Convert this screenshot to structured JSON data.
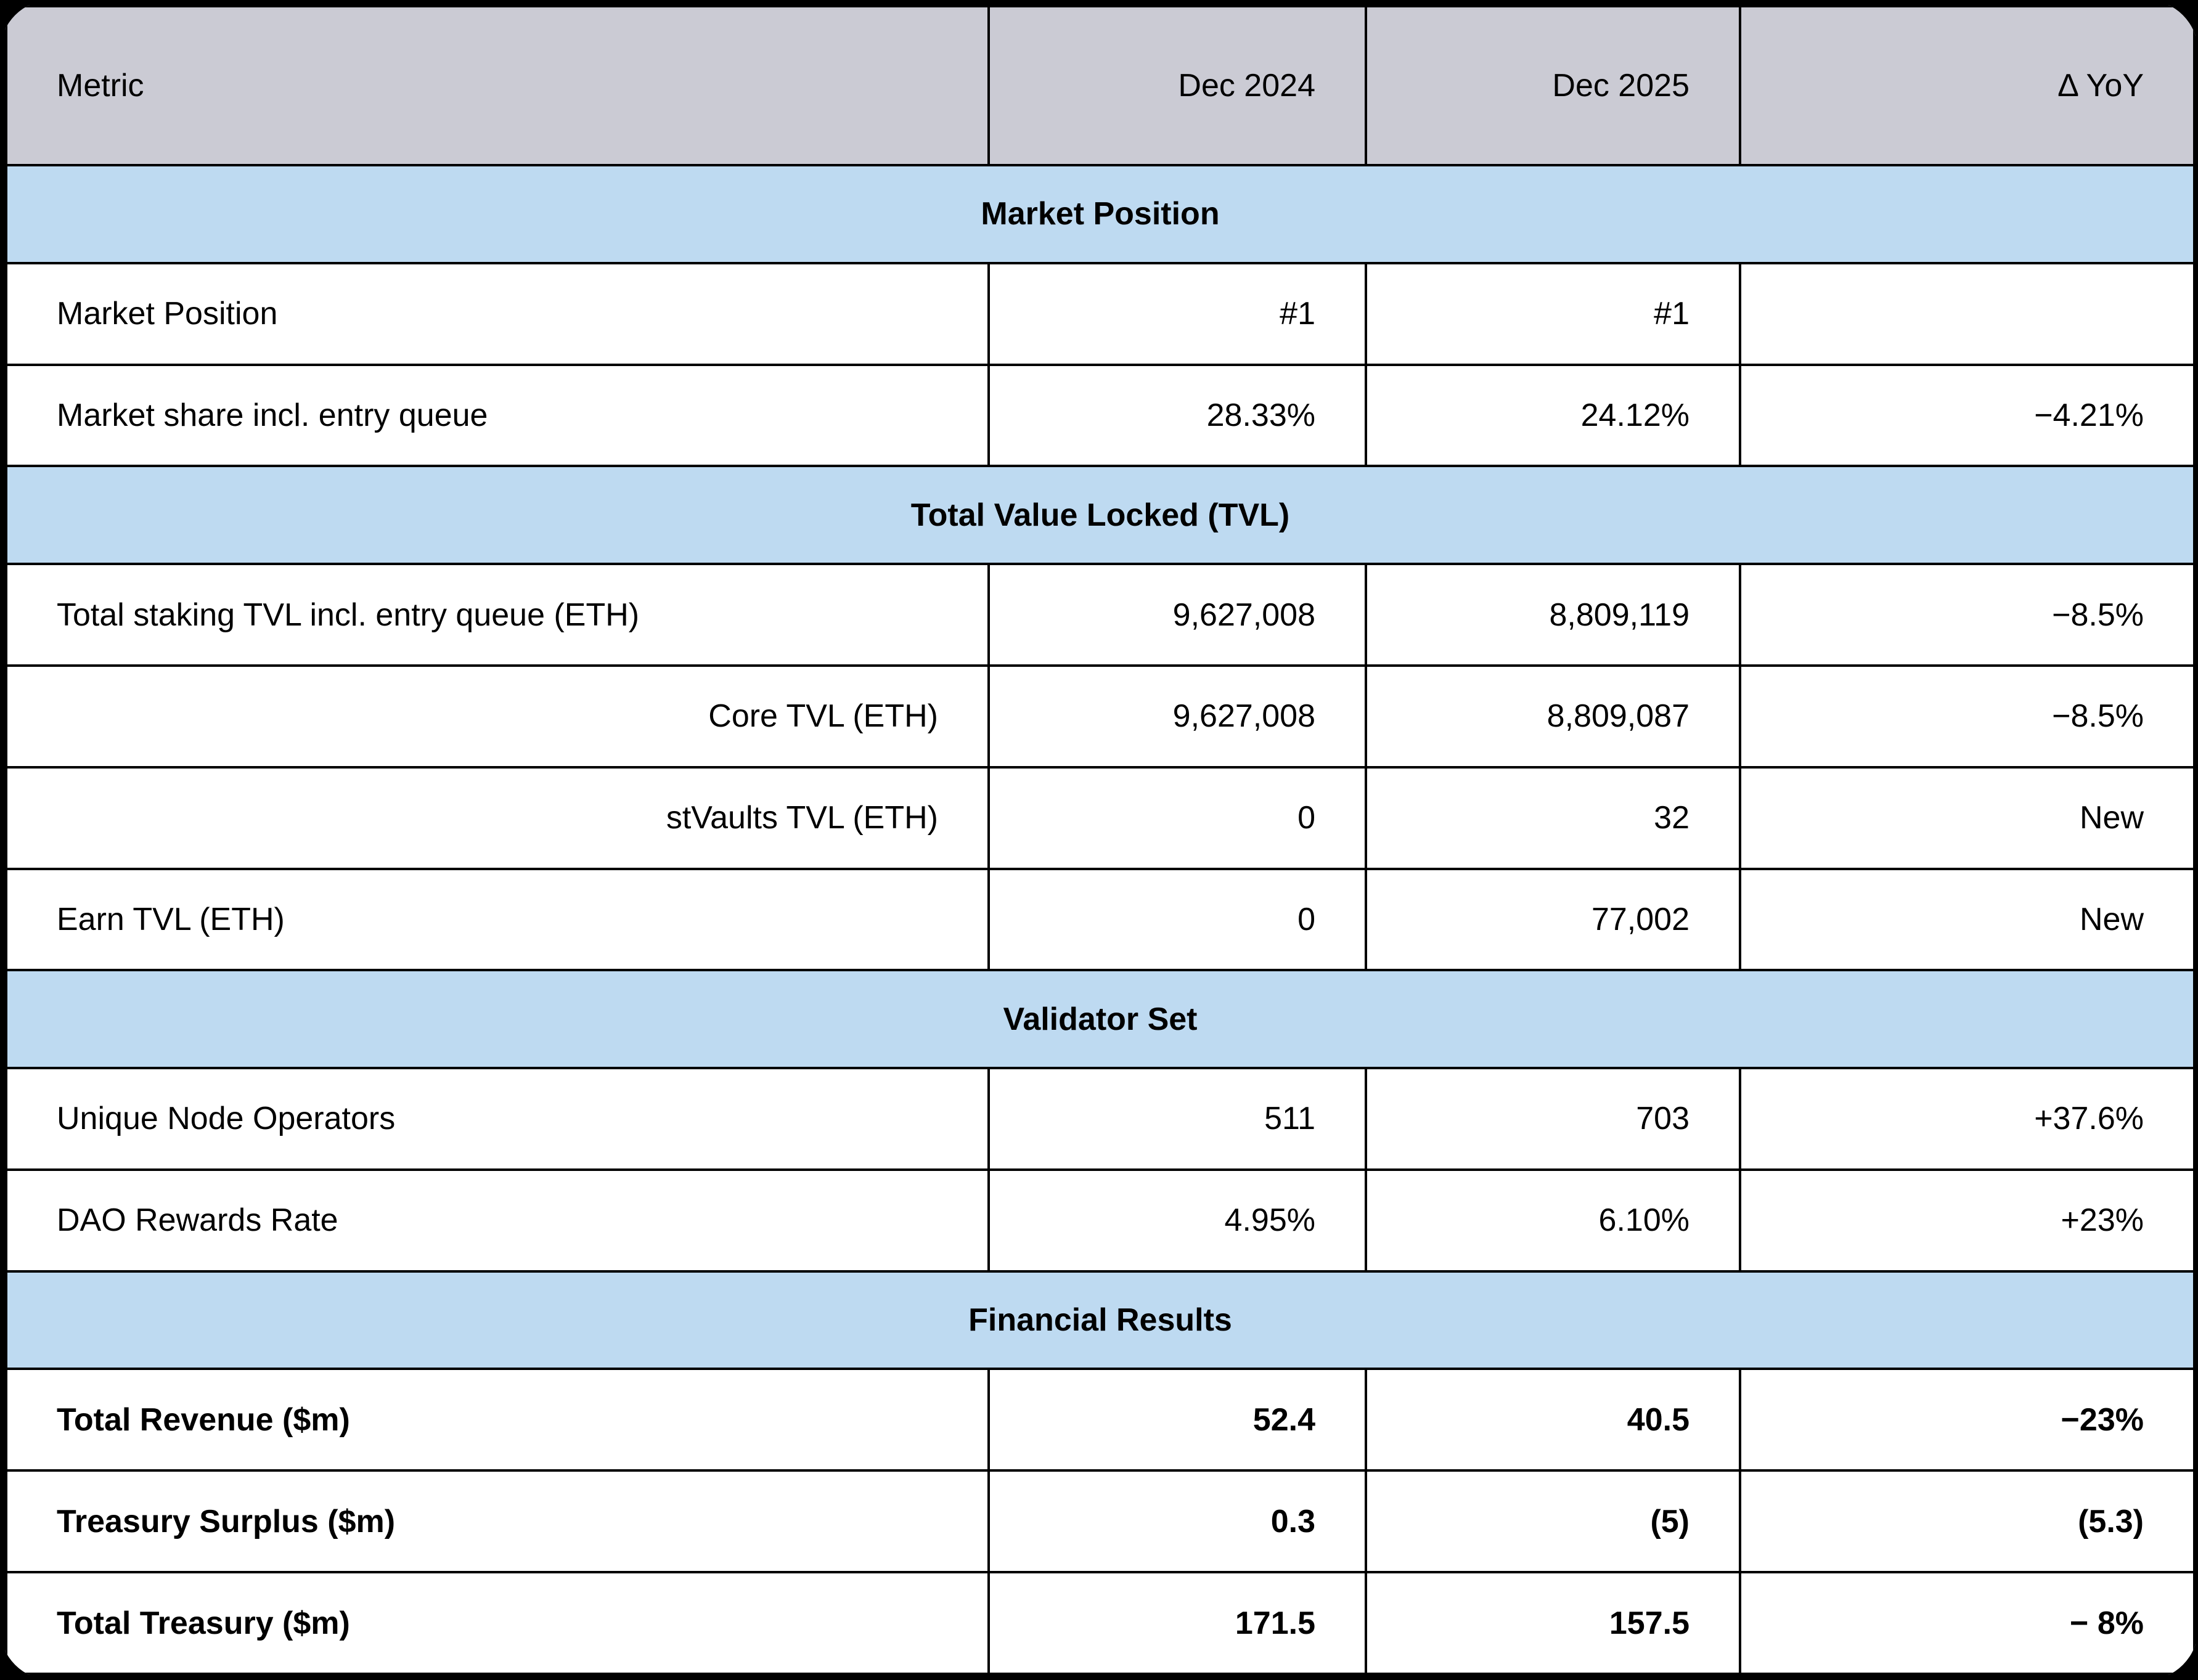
{
  "colors": {
    "header_bg": "#cbcbd4",
    "section_bg": "#bedaf1",
    "row_bg": "#ffffff",
    "border": "#000000",
    "text": "#000000"
  },
  "table": {
    "columns": {
      "metric": "Metric",
      "dec2024": "Dec 2024",
      "dec2025": "Dec 2025",
      "yoy": "Δ YoY"
    },
    "rows": [
      {
        "kind": "section",
        "label": "Market Position"
      },
      {
        "kind": "data",
        "metric": "Market Position",
        "dec2024": "#1",
        "dec2025": "#1",
        "yoy": ""
      },
      {
        "kind": "data",
        "metric": "Market share incl. entry queue",
        "dec2024": "28.33%",
        "dec2025": "24.12%",
        "yoy": "−4.21%"
      },
      {
        "kind": "section",
        "label": "Total Value Locked (TVL)"
      },
      {
        "kind": "data",
        "metric": "Total staking TVL incl. entry queue (ETH)",
        "dec2024": "9,627,008",
        "dec2025": "8,809,119",
        "yoy": "−8.5%"
      },
      {
        "kind": "data",
        "metric": "Core TVL (ETH)",
        "dec2024": "9,627,008",
        "dec2025": "8,809,087",
        "yoy": "−8.5%"
      },
      {
        "kind": "data",
        "metric": "stVaults TVL (ETH)",
        "dec2024": "0",
        "dec2025": "32",
        "yoy": "New"
      },
      {
        "kind": "data",
        "metric": "Earn TVL (ETH)",
        "dec2024": "0",
        "dec2025": "77,002",
        "yoy": "New"
      },
      {
        "kind": "section",
        "label": "Validator Set"
      },
      {
        "kind": "data",
        "metric": "Unique Node Operators",
        "dec2024": "511",
        "dec2025": "703",
        "yoy": "+37.6%"
      },
      {
        "kind": "data",
        "metric": "DAO Rewards Rate",
        "dec2024": "4.95%",
        "dec2025": "6.10%",
        "yoy": "+23%"
      },
      {
        "kind": "section",
        "label": "Financial Results"
      },
      {
        "kind": "data",
        "metric": "Total Revenue ($m)",
        "dec2024": "52.4",
        "dec2025": "40.5",
        "yoy": "−23%"
      },
      {
        "kind": "data",
        "metric": "Treasury Surplus ($m)",
        "dec2024": "0.3",
        "dec2025": "(5)",
        "yoy": "(5.3)"
      },
      {
        "kind": "data",
        "metric": "Total Treasury ($m)",
        "dec2024": "171.5",
        "dec2025": "157.5",
        "yoy": "− 8%"
      }
    ]
  },
  "chart_data": {
    "type": "table",
    "title": "",
    "columns": [
      "Metric",
      "Dec 2024",
      "Dec 2025",
      "Δ YoY"
    ],
    "sections": [
      {
        "title": "Market Position",
        "rows": [
          [
            "Market Position",
            "#1",
            "#1",
            ""
          ],
          [
            "Market share incl. entry queue",
            "28.33%",
            "24.12%",
            "−4.21%"
          ]
        ]
      },
      {
        "title": "Total Value Locked (TVL)",
        "rows": [
          [
            "Total staking TVL incl. entry queue (ETH)",
            "9,627,008",
            "8,809,119",
            "−8.5%"
          ],
          [
            "Core TVL (ETH)",
            "9,627,008",
            "8,809,087",
            "−8.5%"
          ],
          [
            "stVaults TVL (ETH)",
            "0",
            "32",
            "New"
          ],
          [
            "Earn TVL (ETH)",
            "0",
            "77,002",
            "New"
          ]
        ]
      },
      {
        "title": "Validator Set",
        "rows": [
          [
            "Unique Node Operators",
            "511",
            "703",
            "+37.6%"
          ],
          [
            "DAO Rewards Rate",
            "4.95%",
            "6.10%",
            "+23%"
          ]
        ]
      },
      {
        "title": "Financial Results",
        "rows": [
          [
            "Total Revenue ($m)",
            "52.4",
            "40.5",
            "−23%"
          ],
          [
            "Treasury Surplus ($m)",
            "0.3",
            "(5)",
            "(5.3)"
          ],
          [
            "Total Treasury ($m)",
            "171.5",
            "157.5",
            "− 8%"
          ]
        ]
      }
    ]
  }
}
